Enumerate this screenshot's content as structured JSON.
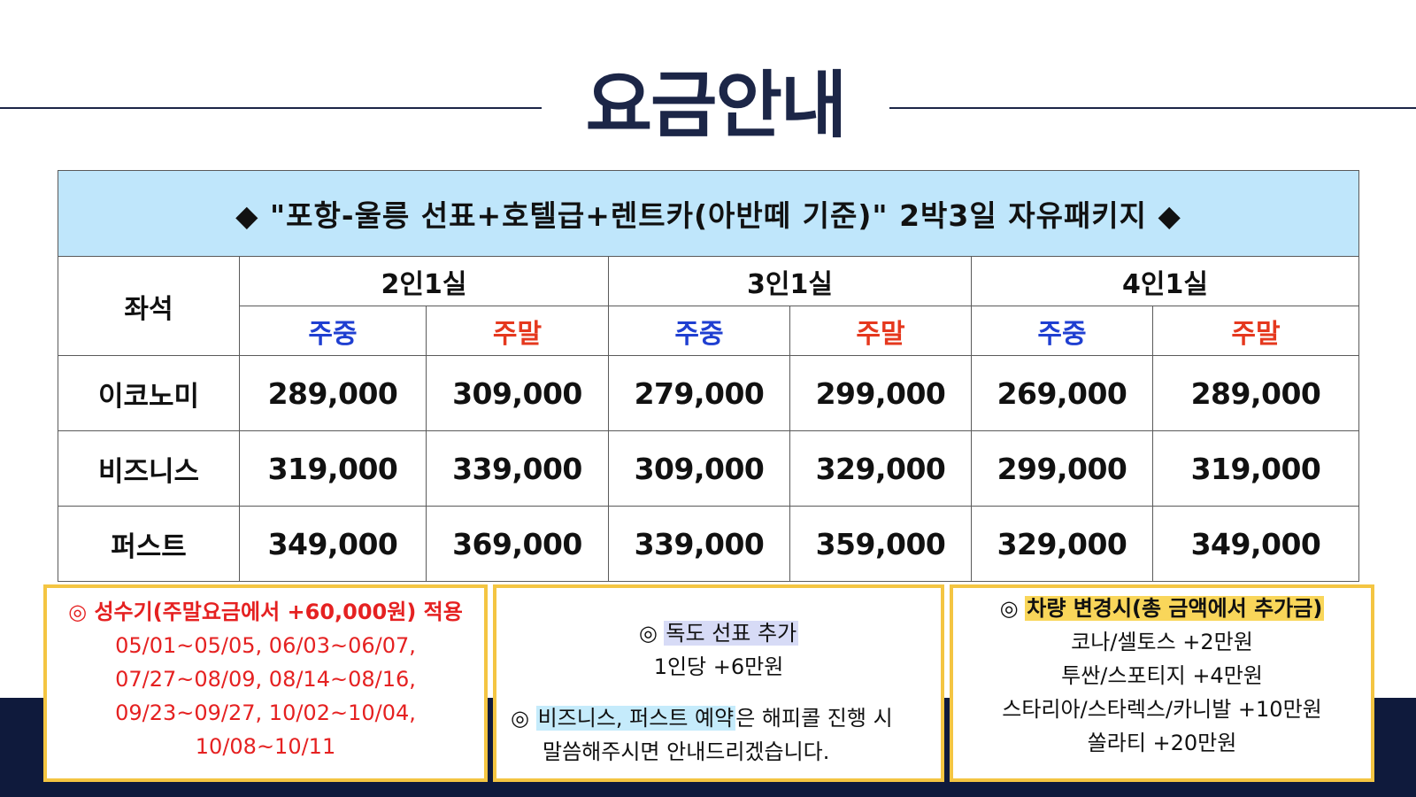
{
  "title": "요금안내",
  "banner": "◆ \"포항-울릉 선표+호텔급+렌트카(아반떼 기준)\" 2박3일 자유패키지 ◆",
  "table": {
    "seat_header": "좌석",
    "groups": [
      "2인1실",
      "3인1실",
      "4인1실"
    ],
    "sub_headers": [
      "주중",
      "주말",
      "주중",
      "주말",
      "주중",
      "주말"
    ],
    "rows": [
      {
        "label": "이코노미",
        "prices": [
          "289,000",
          "309,000",
          "279,000",
          "299,000",
          "269,000",
          "289,000"
        ]
      },
      {
        "label": "비즈니스",
        "prices": [
          "319,000",
          "339,000",
          "309,000",
          "329,000",
          "299,000",
          "319,000"
        ]
      },
      {
        "label": "퍼스트",
        "prices": [
          "349,000",
          "369,000",
          "339,000",
          "359,000",
          "329,000",
          "349,000"
        ]
      }
    ]
  },
  "notes": {
    "peak": {
      "title": "◎ 성수기(주말요금에서 +60,000원) 적용",
      "lines": [
        "05/01~05/05, 06/03~06/07,",
        "07/27~08/09, 08/14~08/16,",
        "09/23~09/27, 10/02~10/04,",
        "10/08~10/11"
      ]
    },
    "dokdo": {
      "mark": "◎",
      "title_highlight": "독도 선표 추가",
      "price": "1인당 +6만원",
      "reserve_mark": "◎",
      "reserve_highlight": "비즈니스, 퍼스트 예약",
      "reserve_rest": "은 해피콜 진행 시",
      "reserve_line2": "말씀해주시면 안내드리겠습니다."
    },
    "car": {
      "mark": "◎",
      "title_highlight": "차량 변경시(총 금액에서 추가금)",
      "lines": [
        "코나/셀토스 +2만원",
        "투싼/스포티지 +4만원",
        "스타리아/스타렉스/카니발 +10만원",
        "쏠라티 +20만원"
      ]
    }
  },
  "colors": {
    "navy": "#1c2647",
    "banner_bg": "#bfe6fb",
    "weekday": "#1f3fd1",
    "weekend": "#e5381e",
    "note_border": "#f4c542",
    "peak_text": "#e52121"
  }
}
